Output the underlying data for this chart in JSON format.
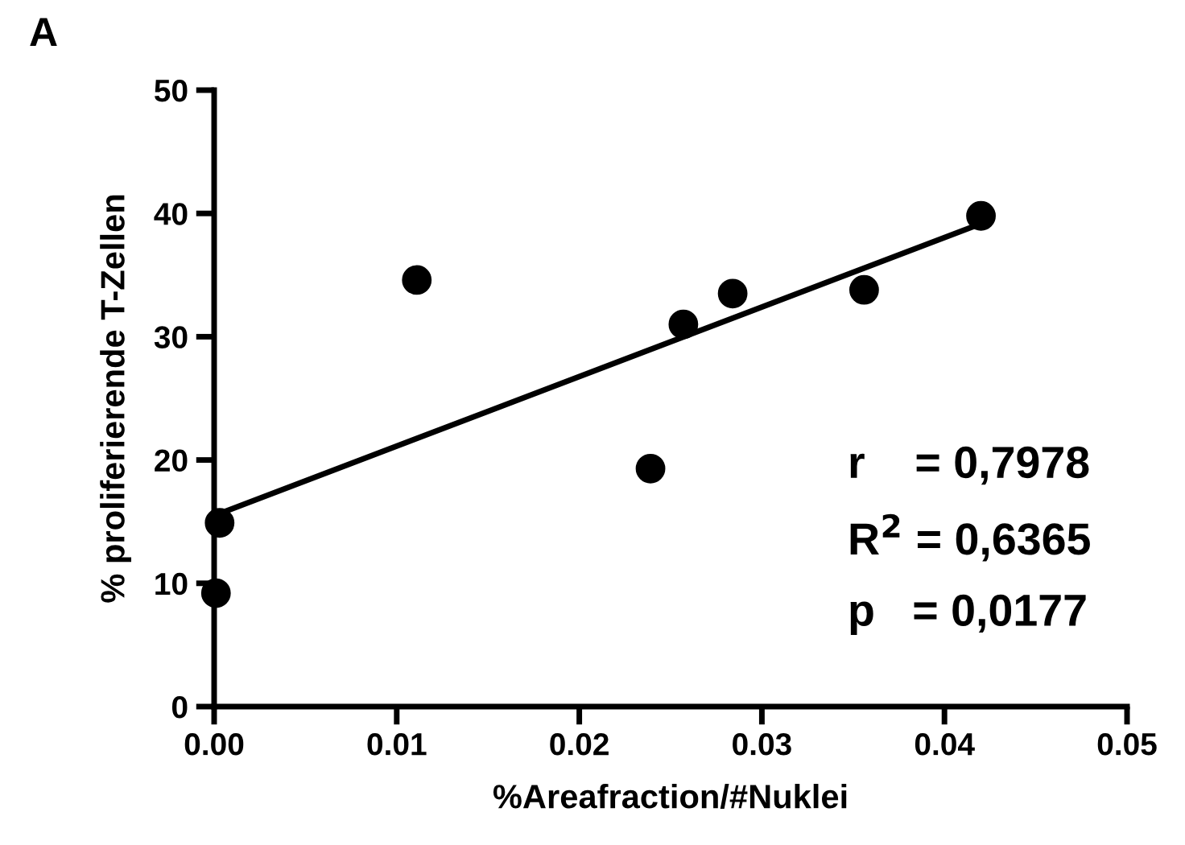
{
  "chart_data": {
    "type": "scatter",
    "title": "A",
    "xlabel": "%Areafraction/#Nuklei",
    "ylabel": "% proliferierende T-Zellen",
    "series": [
      {
        "marker": "circle",
        "color": "#000000",
        "x": [
          0.0001,
          0.0003,
          0.0111,
          0.0239,
          0.0257,
          0.0284,
          0.0356,
          0.042
        ],
        "values": [
          9.2,
          14.9,
          34.6,
          19.3,
          31.0,
          33.5,
          33.8,
          39.8
        ]
      },
      {
        "type": "line",
        "marker": "none",
        "color": "#000000",
        "x": [
          0.0002,
          0.0417
        ],
        "values": [
          15.6,
          39.0
        ]
      }
    ],
    "annotations": [
      "r    = 0,7978",
      "R$^{2}$ = 0,6365",
      "p   = 0,0177"
    ],
    "xlim": [
      0,
      0.05
    ],
    "xticks": [
      {
        "value": 0,
        "label": "0.00"
      },
      0.01,
      0.02,
      0.03,
      0.04,
      0.05
    ],
    "ylim": [
      0,
      50
    ],
    "yticks": [
      0,
      10,
      20,
      30,
      40,
      50
    ],
    "grid": false,
    "legend": false
  }
}
